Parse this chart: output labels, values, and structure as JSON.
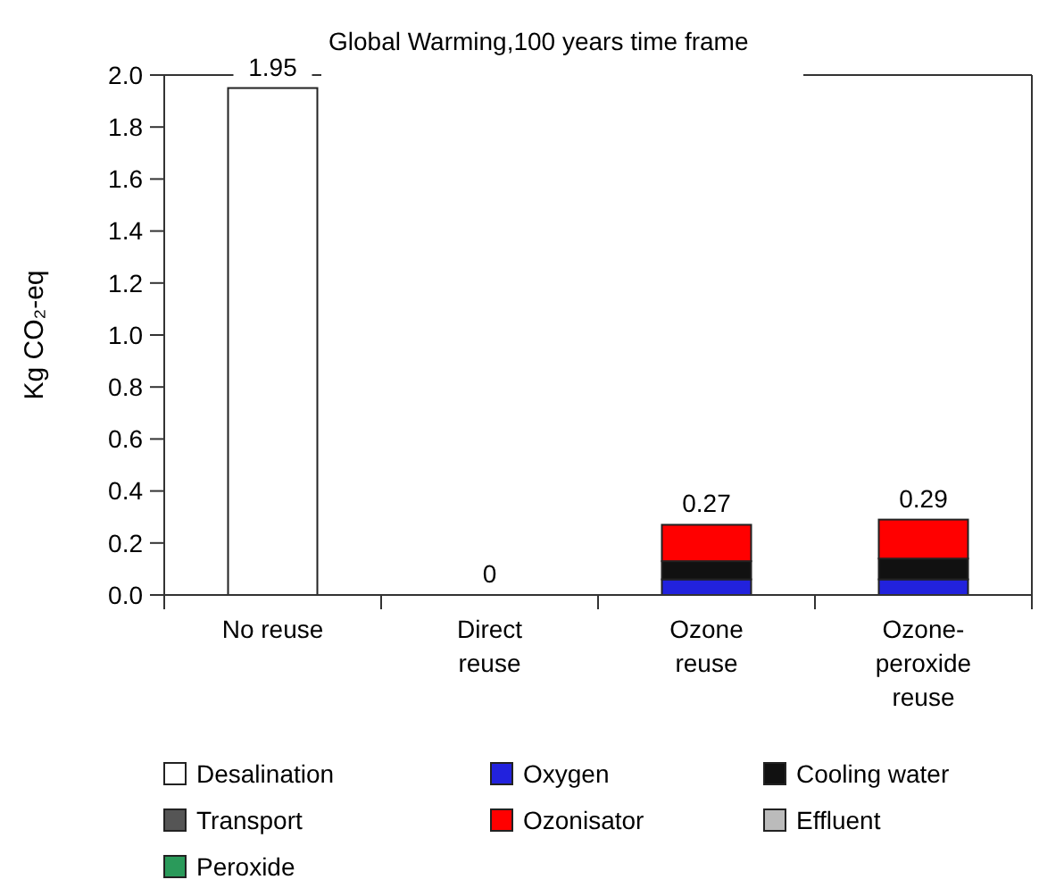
{
  "chart_data": {
    "type": "bar",
    "stacked": true,
    "title": "Global Warming,100 years time frame",
    "ylabel": "Kg CO₂-eq",
    "categories": [
      "No reuse",
      "Direct reuse",
      "Ozone reuse",
      "Ozone-peroxide reuse"
    ],
    "series": [
      {
        "name": "Desalination",
        "color": "#ffffff",
        "values": [
          1.95,
          0,
          0,
          0
        ]
      },
      {
        "name": "Oxygen",
        "color": "#2222dd",
        "values": [
          0,
          0,
          0.06,
          0.06
        ]
      },
      {
        "name": "Cooling water",
        "color": "#111111",
        "values": [
          0,
          0,
          0.07,
          0.08
        ]
      },
      {
        "name": "Transport",
        "color": "#555555",
        "values": [
          0,
          0,
          0,
          0
        ]
      },
      {
        "name": "Ozonisator",
        "color": "#ff0000",
        "values": [
          0,
          0,
          0.14,
          0.15
        ]
      },
      {
        "name": "Effluent",
        "color": "#bbbbbb",
        "values": [
          0,
          0,
          0,
          0
        ]
      },
      {
        "name": "Peroxide",
        "color": "#2a9a5a",
        "values": [
          0,
          0,
          0,
          0
        ]
      }
    ],
    "totals": [
      "1.95",
      "0",
      "0.27",
      "0.29"
    ],
    "ylim": [
      0,
      2
    ],
    "yticks": [
      {
        "value": 0,
        "label": "0.0"
      },
      0.2,
      0.4,
      0.6,
      0.8,
      {
        "value": 1,
        "label": "1.0"
      },
      1.2,
      1.4,
      1.6,
      1.8,
      {
        "value": 2,
        "label": "2.0"
      }
    ],
    "legend": "bottom",
    "grid": false
  }
}
